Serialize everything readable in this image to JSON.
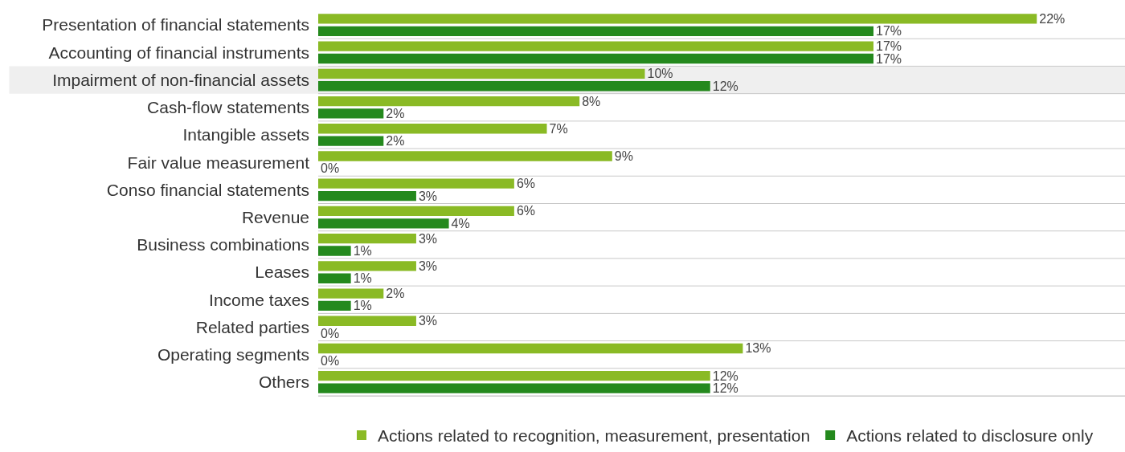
{
  "chart_data": {
    "type": "bar",
    "orientation": "horizontal",
    "categories": [
      "Presentation of financial statements",
      "Accounting of financial instruments",
      "Impairment of non-financial assets",
      "Cash-flow statements",
      "Intangible assets",
      "Fair value measurement",
      "Conso financial statements",
      "Revenue",
      "Business combinations",
      "Leases",
      "Income taxes",
      "Related parties",
      "Operating segments",
      "Others"
    ],
    "series": [
      {
        "name": "Actions related to recognition, measurement, presentation",
        "color": "#8aba25",
        "values": [
          22,
          17,
          10,
          8,
          7,
          9,
          6,
          6,
          3,
          3,
          2,
          3,
          13,
          12
        ],
        "value_labels": [
          "22%",
          "17%",
          "10%",
          "8%",
          "7%",
          "9%",
          "6%",
          "6%",
          "3%",
          "3%",
          "2%",
          "3%",
          "13%",
          "12%"
        ]
      },
      {
        "name": "Actions related to disclosure only",
        "color": "#24891d",
        "values": [
          17,
          17,
          12,
          2,
          2,
          0,
          3,
          4,
          1,
          1,
          1,
          0,
          0,
          12
        ],
        "value_labels": [
          "17%",
          "17%",
          "12%",
          "2%",
          "2%",
          "0%",
          "3%",
          "4%",
          "1%",
          "1%",
          "1%",
          "0%",
          "0%",
          "12%"
        ]
      }
    ],
    "xlim": [
      0,
      24.7
    ],
    "tick_labels": "y",
    "grid": "y",
    "legend": "bottom",
    "bands": [
      {
        "axis": "y",
        "from": "Impairment of non-financial assets",
        "to": "Impairment of non-financial assets",
        "color": "#efefef"
      }
    ]
  }
}
